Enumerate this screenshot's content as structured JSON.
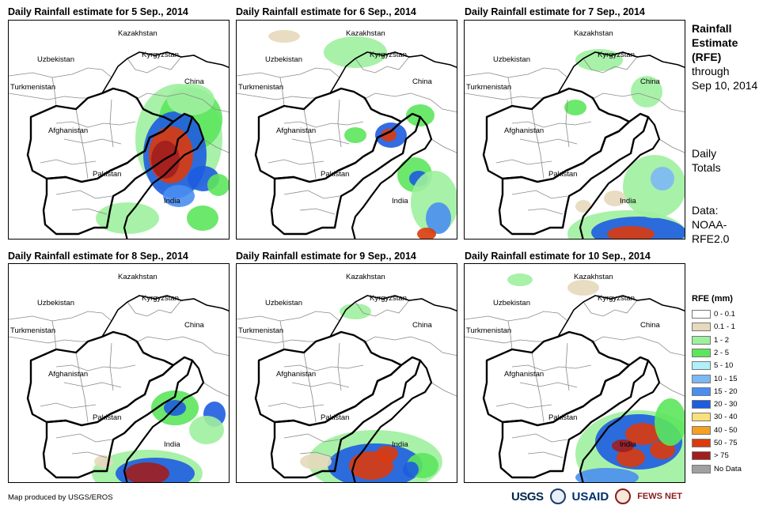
{
  "panels": [
    {
      "title": "Daily Rainfall estimate for 5 Sep., 2014"
    },
    {
      "title": "Daily Rainfall estimate for 6 Sep., 2014"
    },
    {
      "title": "Daily Rainfall estimate for 7 Sep., 2014"
    },
    {
      "title": "Daily Rainfall estimate for 8 Sep., 2014"
    },
    {
      "title": "Daily Rainfall estimate for 9 Sep., 2014"
    },
    {
      "title": "Daily Rainfall estimate for 10 Sep., 2014"
    }
  ],
  "country_labels": {
    "kazakhstan": "Kazakhstan",
    "uzbekistan": "Uzbekistan",
    "kyrgyzstan": "Kyrgyzstan",
    "turkmenistan": "Turkmenistan",
    "china": "China",
    "afghanistan": "Afghanistan",
    "pakistan": "Pakistan",
    "india": "India"
  },
  "side_text": {
    "title_line1": "Rainfall",
    "title_line2": "Estimate",
    "title_line3": "(RFE)",
    "through": "through",
    "date": "Sep 10, 2014",
    "daily": "Daily",
    "totals": "Totals",
    "data_label": "Data:",
    "data_source1": "NOAA-",
    "data_source2": "RFE2.0"
  },
  "legend": {
    "title": "RFE (mm)",
    "items": [
      {
        "label": "0 - 0.1",
        "color": "#ffffff"
      },
      {
        "label": "0.1 - 1",
        "color": "#e6d9bc"
      },
      {
        "label": "1 - 2",
        "color": "#9ef09e"
      },
      {
        "label": "2 - 5",
        "color": "#5ce65c"
      },
      {
        "label": "5 - 10",
        "color": "#b0f0f8"
      },
      {
        "label": "10 - 15",
        "color": "#7cb8f4"
      },
      {
        "label": "15 - 20",
        "color": "#4a8ef0"
      },
      {
        "label": "20 - 30",
        "color": "#1e5ce0"
      },
      {
        "label": "30 - 40",
        "color": "#fae07a"
      },
      {
        "label": "40 - 50",
        "color": "#f5a020"
      },
      {
        "label": "50 - 75",
        "color": "#dc3a0c"
      },
      {
        "label": "> 75",
        "color": "#a01e1e"
      },
      {
        "label": "No Data",
        "color": "#a0a0a0"
      }
    ]
  },
  "credit": "Map produced by USGS/EROS",
  "logos": {
    "usgs": "USGS",
    "usaid": "USAID",
    "fews": "FEWS NET"
  }
}
